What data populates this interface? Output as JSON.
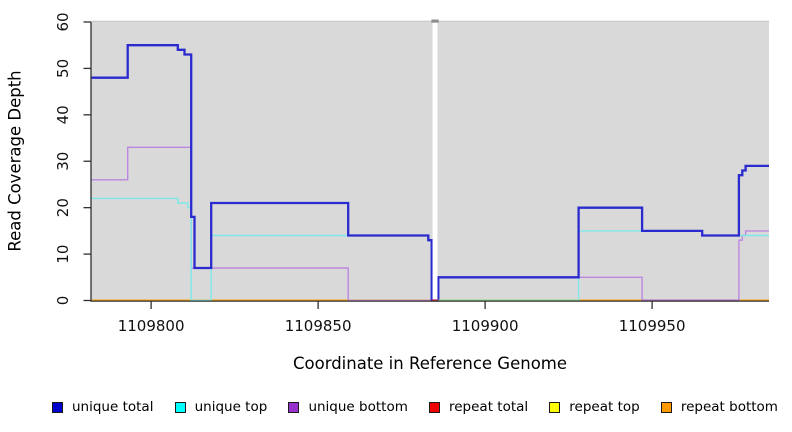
{
  "figure": {
    "y_axis_title": "Read Coverage Depth",
    "x_axis_title": "Coordinate in Reference Genome"
  },
  "chart_data": {
    "type": "line",
    "subtype": "step-after",
    "title": "",
    "xlabel": "Coordinate in Reference Genome",
    "ylabel": "Read Coverage Depth",
    "xlim": [
      1109782,
      1109985
    ],
    "ylim": [
      0,
      60
    ],
    "x_ticks": [
      1109800,
      1109850,
      1109900,
      1109950
    ],
    "y_ticks": [
      0,
      10,
      20,
      30,
      40,
      50,
      60
    ],
    "grid": false,
    "legend_position": "bottom",
    "panel_background": "#d9d9d9",
    "axis_color": "#2f2f2f",
    "gap": {
      "from": 1109884,
      "to": 1109886
    },
    "series": [
      {
        "name": "unique-total",
        "label": "unique total",
        "line_color": "#2a2acf",
        "legend_color": "#0000cc",
        "line_width": 2.3,
        "points": [
          [
            1109782,
            48
          ],
          [
            1109793,
            55
          ],
          [
            1109808,
            54
          ],
          [
            1109810,
            53
          ],
          [
            1109812,
            18
          ],
          [
            1109813,
            7
          ],
          [
            1109818,
            21
          ],
          [
            1109859,
            14
          ],
          [
            1109883,
            13
          ],
          [
            1109884,
            0
          ],
          [
            1109886,
            5
          ],
          [
            1109928,
            20
          ],
          [
            1109947,
            15
          ],
          [
            1109965,
            14
          ],
          [
            1109976,
            27
          ],
          [
            1109977,
            28
          ],
          [
            1109978,
            29
          ]
        ]
      },
      {
        "name": "unique-top",
        "label": "unique top",
        "line_color": "#7fe9e9",
        "legend_color": "#00ffff",
        "line_width": 1.4,
        "points": [
          [
            1109782,
            22
          ],
          [
            1109808,
            21
          ],
          [
            1109811,
            20
          ],
          [
            1109812,
            0
          ],
          [
            1109818,
            14
          ],
          [
            1109883,
            13
          ],
          [
            1109884,
            0
          ],
          [
            1109928,
            15
          ],
          [
            1109965,
            14
          ]
        ]
      },
      {
        "name": "unique-bottom",
        "label": "unique bottom",
        "line_color": "#bd87e0",
        "legend_color": "#9932cc",
        "line_width": 1.4,
        "points": [
          [
            1109782,
            26
          ],
          [
            1109793,
            33
          ],
          [
            1109812,
            7
          ],
          [
            1109859,
            0
          ],
          [
            1109886,
            5
          ],
          [
            1109947,
            0
          ],
          [
            1109976,
            13
          ],
          [
            1109977,
            14
          ],
          [
            1109978,
            15
          ]
        ]
      },
      {
        "name": "repeat-total",
        "label": "repeat total",
        "line_color": "#dd2222",
        "legend_color": "#ee0000",
        "line_width": 1.5,
        "points": [
          [
            1109782,
            0
          ]
        ]
      },
      {
        "name": "repeat-top",
        "label": "repeat top",
        "line_color": "#f5e800",
        "legend_color": "#ffff00",
        "line_width": 1.5,
        "points": [
          [
            1109782,
            0
          ]
        ]
      },
      {
        "name": "repeat-bottom",
        "label": "repeat bottom",
        "line_color": "#ffa500",
        "legend_color": "#ff9900",
        "line_width": 1.8,
        "points": [
          [
            1109782,
            0
          ]
        ]
      }
    ],
    "zero_line_overlap_segments": [
      {
        "from": 1109884,
        "to": 1109886,
        "color": "#dd2222"
      },
      {
        "from": 1109886,
        "to": 1109928,
        "color": "#86d98a"
      },
      {
        "from": 1109947,
        "to": 1109976,
        "color": "#a765ce"
      }
    ]
  }
}
